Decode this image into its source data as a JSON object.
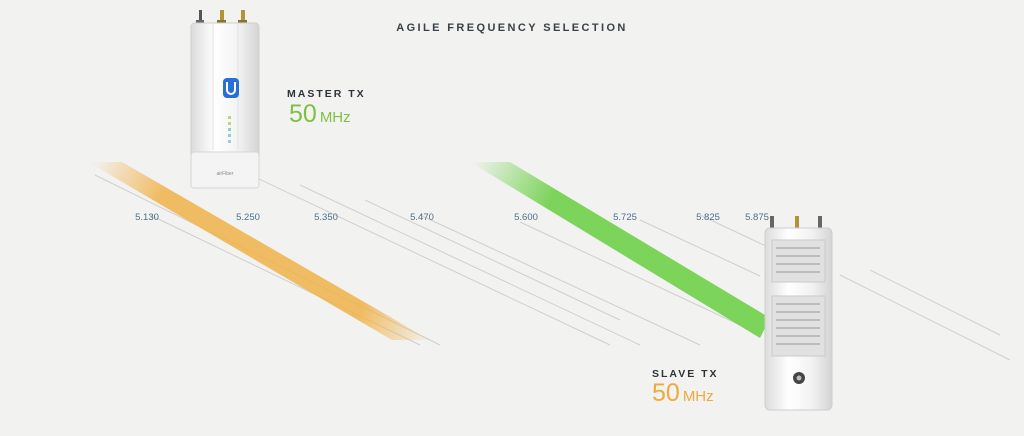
{
  "title": "AGILE FREQUENCY SELECTION",
  "frequency_scale": [
    "5.130",
    "5.250",
    "5.350",
    "5.470",
    "5.600",
    "5.725",
    "5.825",
    "5.875"
  ],
  "master": {
    "label": "MASTER TX",
    "value": "50",
    "unit": "MHz",
    "color": "#7cc242"
  },
  "slave": {
    "label": "SLAVE TX",
    "value": "50",
    "unit": "MHz",
    "color": "#f0a93c"
  },
  "device_logo": "airFiber",
  "colors": {
    "background": "#f2f2f1",
    "orange_band": "#f0b24a",
    "green_band": "#6fd04a",
    "frequency_text": "#4d6f8c"
  }
}
